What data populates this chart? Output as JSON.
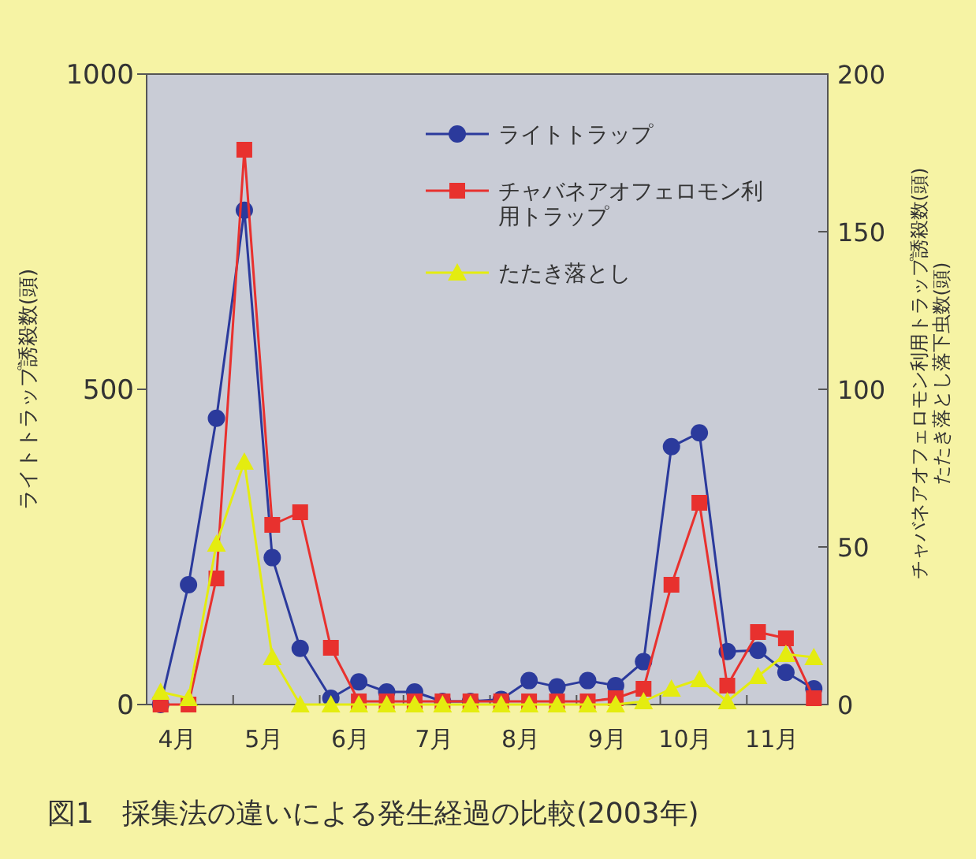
{
  "chart_data": {
    "type": "line",
    "title": "図1　採集法の違いによる発生経過の比較(2003年)",
    "ylabel": "ライトトラップ誘殺数(頭)",
    "y2label": "チャバネアオフェロモン利用トラップ誘殺数(頭)\nたたき落とし落下虫数(頭)",
    "x": [
      "--04-05",
      "--04-15",
      "--04-25",
      "--05-05",
      "--05-15",
      "--05-25",
      "--06-05",
      "--06-15",
      "--06-25",
      "--07-05",
      "--07-15",
      "--07-25",
      "--08-05",
      "--08-15",
      "--08-25",
      "--09-05",
      "--09-15",
      "--09-25",
      "--10-05",
      "--10-15",
      "--10-25",
      "--11-05",
      "--11-15",
      "--11-25"
    ],
    "xlim": [
      "--03-31",
      "--11-30"
    ],
    "xticks": [
      {
        "value": "--04-11",
        "label": "4月"
      },
      {
        "value": "--05-01",
        "label": null
      },
      {
        "value": "--05-12",
        "label": "5月"
      },
      {
        "value": "--06-01",
        "label": null
      },
      {
        "value": "--06-12",
        "label": "6月"
      },
      {
        "value": "--07-01",
        "label": null
      },
      {
        "value": "--07-12",
        "label": "7月"
      },
      {
        "value": "--08-01",
        "label": null
      },
      {
        "value": "--08-12",
        "label": "8月"
      },
      {
        "value": "--09-01",
        "label": null
      },
      {
        "value": "--09-12",
        "label": "9月"
      },
      {
        "value": "--10-01",
        "label": null
      },
      {
        "value": "--10-10",
        "label": "10月"
      },
      {
        "value": "--11-01",
        "label": null
      },
      {
        "value": "--11-10",
        "label": "11月"
      }
    ],
    "ylim": [
      0,
      1000
    ],
    "yticks": [
      0,
      500,
      1000
    ],
    "y2lim": [
      0,
      200
    ],
    "y2ticks": [
      0,
      50,
      100,
      150,
      200
    ],
    "series": [
      {
        "name": "ライトトラップ",
        "color": "#2b3a9c",
        "marker": "circle",
        "values": [
          0,
          190,
          454,
          784,
          233,
          89,
          10,
          36,
          20,
          20,
          5,
          5,
          8,
          38,
          28,
          38,
          30,
          68,
          409,
          431,
          84,
          86,
          51,
          25
        ]
      },
      {
        "name": "チャバネアオフェロモン利用トラップ",
        "color": "#e8312e",
        "marker": "square",
        "axis": "y2",
        "values": [
          0,
          0,
          40,
          176,
          57,
          61,
          18,
          1,
          1,
          1,
          1,
          1,
          1,
          1,
          1,
          1,
          2,
          5,
          38,
          64,
          6,
          23,
          21,
          2
        ]
      },
      {
        "name": "たたき落とし",
        "color": "#e4ec10",
        "marker": "triangle",
        "axis": "y2",
        "values": [
          4,
          2,
          51,
          77,
          15,
          0,
          0,
          0,
          0,
          0,
          0,
          0,
          0,
          0,
          0,
          0,
          0,
          1,
          5,
          8,
          1,
          9,
          16,
          15
        ]
      }
    ],
    "legend": "top right",
    "grid": false
  }
}
